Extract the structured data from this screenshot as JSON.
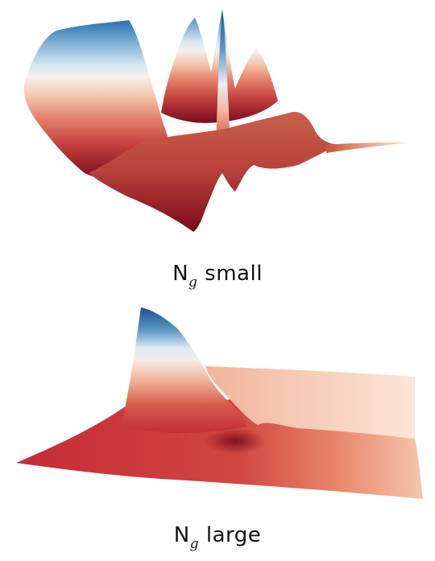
{
  "panels": [
    {
      "id": "small",
      "caption_main": "N",
      "caption_sub": "g",
      "caption_rest": " small"
    },
    {
      "id": "large",
      "caption_main": "N",
      "caption_sub": "g",
      "caption_rest": " large"
    }
  ],
  "colors": {
    "deep_red": "#7a0b1c",
    "red": "#c0303a",
    "salmon": "#e8836b",
    "peach": "#f7d2bd",
    "white": "#f6f3f2",
    "light_blue": "#a8cde3",
    "blue": "#2f78b4",
    "deep_blue": "#1d4f8f"
  }
}
